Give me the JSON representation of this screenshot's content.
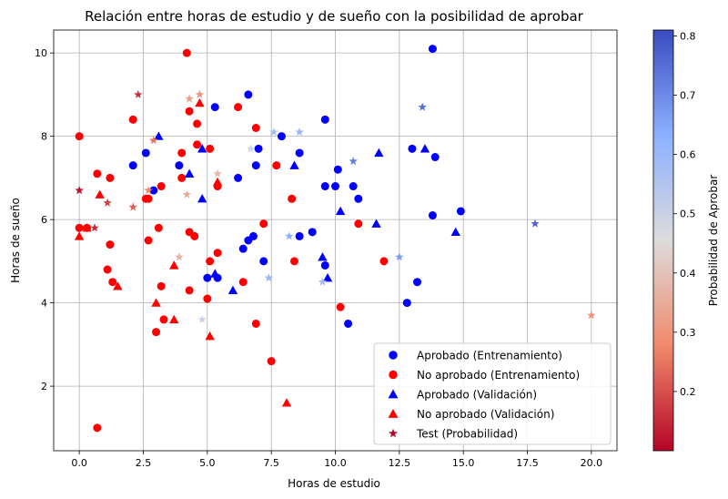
{
  "chart_data": {
    "type": "scatter",
    "title": "Relación entre horas de estudio y de sueño con la posibilidad de aprobar",
    "xlabel": "Horas de estudio",
    "ylabel": "Horas de sueño",
    "xlim": [
      -1,
      21
    ],
    "ylim": [
      0.45,
      10.55
    ],
    "xticks": [
      0.0,
      2.5,
      5.0,
      7.5,
      10.0,
      12.5,
      15.0,
      17.5,
      20.0
    ],
    "xtick_labels": [
      "0.0",
      "2.5",
      "5.0",
      "7.5",
      "10.0",
      "12.5",
      "15.0",
      "17.5",
      "20.0"
    ],
    "yticks": [
      2,
      4,
      6,
      8,
      10
    ],
    "ytick_labels": [
      "2",
      "4",
      "6",
      "8",
      "10"
    ],
    "grid": true,
    "legend_position": "lower-right",
    "colorbar": {
      "label": "Probabilidad de Aprobar",
      "range": [
        0.1,
        0.81
      ],
      "ticks": [
        0.2,
        0.3,
        0.4,
        0.5,
        0.6,
        0.7,
        0.8
      ],
      "tick_labels": [
        "0.2",
        "0.3",
        "0.4",
        "0.5",
        "0.6",
        "0.7",
        "0.8"
      ],
      "colormap": "coolwarm_r"
    },
    "series": [
      {
        "name": "Aprobado (Entrenamiento)",
        "marker": "circle",
        "color": "#0000ff",
        "points": [
          [
            2.1,
            7.3
          ],
          [
            2.6,
            7.6
          ],
          [
            2.9,
            6.7
          ],
          [
            3.9,
            7.3
          ],
          [
            5.0,
            4.6
          ],
          [
            5.3,
            8.7
          ],
          [
            5.4,
            4.6
          ],
          [
            6.2,
            7.0
          ],
          [
            6.4,
            5.3
          ],
          [
            6.6,
            5.5
          ],
          [
            6.6,
            9.0
          ],
          [
            6.8,
            5.6
          ],
          [
            6.9,
            7.3
          ],
          [
            7.0,
            7.7
          ],
          [
            7.2,
            5.0
          ],
          [
            7.9,
            8.0
          ],
          [
            8.6,
            5.6
          ],
          [
            8.6,
            7.6
          ],
          [
            9.1,
            5.7
          ],
          [
            9.6,
            4.9
          ],
          [
            9.6,
            6.8
          ],
          [
            9.6,
            8.4
          ],
          [
            10.0,
            6.8
          ],
          [
            10.1,
            7.2
          ],
          [
            10.5,
            3.5
          ],
          [
            10.7,
            6.8
          ],
          [
            10.9,
            6.5
          ],
          [
            12.8,
            4.0
          ],
          [
            13.0,
            7.7
          ],
          [
            13.2,
            4.5
          ],
          [
            13.8,
            6.1
          ],
          [
            13.8,
            10.1
          ],
          [
            13.9,
            7.5
          ],
          [
            14.9,
            6.2
          ]
        ]
      },
      {
        "name": "No aprobado (Entrenamiento)",
        "marker": "circle",
        "color": "#ff0000",
        "points": [
          [
            0.0,
            8.0
          ],
          [
            0.0,
            5.8
          ],
          [
            0.3,
            5.8
          ],
          [
            0.7,
            7.1
          ],
          [
            0.7,
            1.0
          ],
          [
            1.1,
            4.8
          ],
          [
            1.2,
            7.0
          ],
          [
            1.2,
            5.4
          ],
          [
            1.3,
            4.5
          ],
          [
            2.1,
            8.4
          ],
          [
            2.6,
            6.5
          ],
          [
            2.7,
            6.5
          ],
          [
            2.7,
            5.5
          ],
          [
            3.0,
            3.3
          ],
          [
            3.1,
            5.8
          ],
          [
            3.2,
            4.4
          ],
          [
            3.2,
            6.8
          ],
          [
            3.3,
            3.6
          ],
          [
            4.0,
            7.0
          ],
          [
            4.0,
            7.6
          ],
          [
            4.2,
            10.0
          ],
          [
            4.3,
            8.6
          ],
          [
            4.3,
            5.7
          ],
          [
            4.3,
            4.3
          ],
          [
            4.5,
            5.6
          ],
          [
            4.6,
            7.8
          ],
          [
            4.6,
            8.3
          ],
          [
            5.0,
            4.1
          ],
          [
            5.1,
            5.0
          ],
          [
            5.1,
            7.7
          ],
          [
            5.4,
            5.2
          ],
          [
            5.4,
            6.8
          ],
          [
            6.2,
            8.7
          ],
          [
            6.4,
            4.5
          ],
          [
            6.9,
            8.2
          ],
          [
            6.9,
            3.5
          ],
          [
            7.2,
            5.9
          ],
          [
            7.5,
            2.6
          ],
          [
            7.7,
            7.3
          ],
          [
            8.3,
            6.5
          ],
          [
            8.4,
            5.0
          ],
          [
            10.2,
            3.9
          ],
          [
            10.9,
            5.9
          ],
          [
            11.9,
            5.0
          ]
        ]
      },
      {
        "name": "Aprobado (Validación)",
        "marker": "triangle",
        "color": "#0000ff",
        "points": [
          [
            3.1,
            8.0
          ],
          [
            4.3,
            7.1
          ],
          [
            4.8,
            6.5
          ],
          [
            4.8,
            7.7
          ],
          [
            5.3,
            4.7
          ],
          [
            6.0,
            4.3
          ],
          [
            8.4,
            7.3
          ],
          [
            9.5,
            5.1
          ],
          [
            9.7,
            4.6
          ],
          [
            10.2,
            6.2
          ],
          [
            11.6,
            5.9
          ],
          [
            11.7,
            7.6
          ],
          [
            13.5,
            7.7
          ],
          [
            14.7,
            5.7
          ]
        ]
      },
      {
        "name": "No aprobado (Validación)",
        "marker": "triangle",
        "color": "#ff0000",
        "points": [
          [
            0.0,
            5.6
          ],
          [
            0.3,
            5.8
          ],
          [
            0.8,
            6.6
          ],
          [
            1.5,
            4.4
          ],
          [
            3.0,
            4.0
          ],
          [
            3.7,
            4.9
          ],
          [
            3.7,
            3.6
          ],
          [
            4.7,
            8.8
          ],
          [
            5.1,
            3.2
          ],
          [
            5.4,
            6.9
          ],
          [
            8.1,
            1.6
          ]
        ]
      },
      {
        "name": "Test (Probabilidad)",
        "marker": "star",
        "color": "#b40426",
        "points": [
          [
            0.0,
            6.7,
            0.12
          ],
          [
            0.6,
            5.8,
            0.15
          ],
          [
            1.1,
            6.4,
            0.18
          ],
          [
            2.1,
            6.3,
            0.22
          ],
          [
            2.3,
            9.0,
            0.16
          ],
          [
            2.7,
            6.7,
            0.28
          ],
          [
            2.9,
            7.9,
            0.25
          ],
          [
            3.9,
            5.1,
            0.36
          ],
          [
            4.2,
            6.6,
            0.35
          ],
          [
            4.3,
            8.9,
            0.33
          ],
          [
            4.7,
            9.0,
            0.3
          ],
          [
            4.8,
            3.6,
            0.5
          ],
          [
            5.4,
            7.1,
            0.38
          ],
          [
            6.7,
            7.7,
            0.48
          ],
          [
            7.4,
            4.6,
            0.6
          ],
          [
            7.6,
            8.1,
            0.57
          ],
          [
            8.2,
            5.6,
            0.63
          ],
          [
            8.6,
            8.1,
            0.6
          ],
          [
            9.5,
            4.5,
            0.58
          ],
          [
            10.7,
            7.4,
            0.72
          ],
          [
            12.5,
            5.1,
            0.67
          ],
          [
            13.4,
            8.7,
            0.74
          ],
          [
            17.8,
            5.9,
            0.76
          ],
          [
            20.0,
            3.7,
            0.3
          ]
        ]
      }
    ]
  }
}
